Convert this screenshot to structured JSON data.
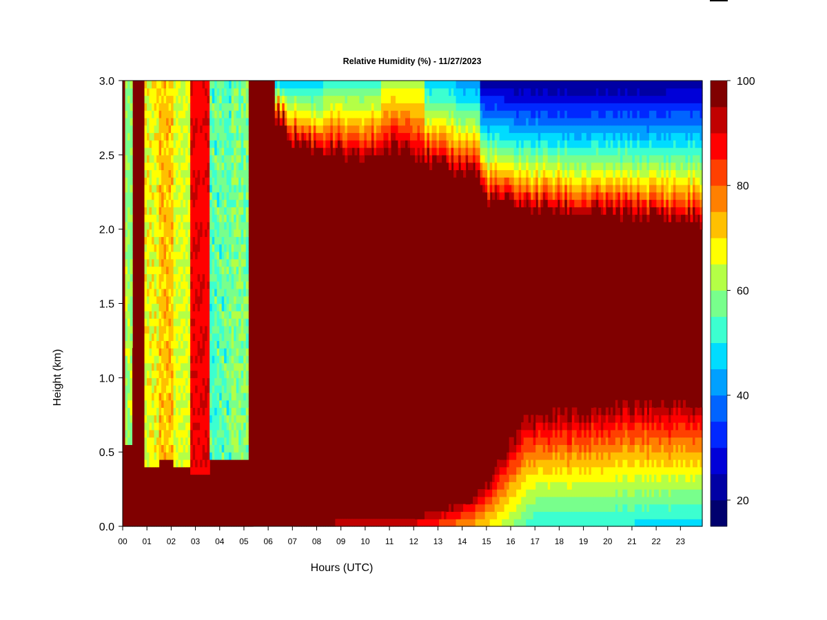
{
  "chart_data": {
    "type": "heatmap",
    "title": "Relative Humidity (%) - 11/27/2023",
    "xlabel": "Hours (UTC)",
    "ylabel": "Height (km)",
    "xlim": [
      0,
      23.9
    ],
    "ylim": [
      0,
      3
    ],
    "x_ticks": [
      "00",
      "01",
      "02",
      "03",
      "04",
      "05",
      "06",
      "07",
      "08",
      "09",
      "10",
      "11",
      "12",
      "13",
      "14",
      "15",
      "16",
      "17",
      "18",
      "19",
      "20",
      "21",
      "22",
      "23"
    ],
    "y_ticks": [
      "0.0",
      "0.5",
      "1.0",
      "1.5",
      "2.0",
      "2.5",
      "3.0"
    ],
    "colorbar": {
      "min": 15,
      "max": 100,
      "ticks": [
        "20",
        "40",
        "60",
        "80",
        "100"
      ],
      "colors": [
        "#00006e",
        "#0000a4",
        "#0000d8",
        "#0028ff",
        "#0064ff",
        "#00a0ff",
        "#00dcff",
        "#3cffd0",
        "#78ff8c",
        "#b4ff46",
        "#ffff00",
        "#ffc000",
        "#ff8000",
        "#ff4000",
        "#ff0000",
        "#c00000",
        "#800000"
      ]
    },
    "profiles": [
      {
        "hour": 0.0,
        "lower_top_km": 0.35,
        "upper_base_km": 3.0
      },
      {
        "hour": 0.2,
        "lower_top_km": 0.55,
        "upper_base_km": 3.0,
        "min_rh": 55
      },
      {
        "hour": 0.5,
        "lower_top_km": 3.0,
        "upper_base_km": 3.0
      },
      {
        "hour": 1.3,
        "lower_top_km": 0.4,
        "upper_base_km": 3.0,
        "min_rh": 62
      },
      {
        "hour": 1.7,
        "lower_top_km": 0.45,
        "upper_base_km": 3.0,
        "min_rh": 68
      },
      {
        "hour": 2.5,
        "lower_top_km": 0.4,
        "upper_base_km": 3.0,
        "min_rh": 60
      },
      {
        "hour": 3.0,
        "lower_top_km": 0.35,
        "upper_base_km": 3.0,
        "min_rh": 88
      },
      {
        "hour": 4.2,
        "lower_top_km": 0.45,
        "upper_base_km": 3.0,
        "min_rh": 48
      },
      {
        "hour": 4.8,
        "lower_top_km": 0.45,
        "upper_base_km": 3.0,
        "min_rh": 52
      },
      {
        "hour": 5.5,
        "lower_top_km": 0.0,
        "upper_base_km": 3.0
      },
      {
        "hour": 7.0,
        "lower_top_km": 0.05,
        "upper_base_km": 2.6,
        "min_rh": 45
      },
      {
        "hour": 9.5,
        "lower_top_km": 0.07,
        "upper_base_km": 2.45,
        "min_rh": 52
      },
      {
        "hour": 11.8,
        "lower_top_km": 0.08,
        "upper_base_km": 2.55,
        "min_rh": 62
      },
      {
        "hour": 13.0,
        "lower_top_km": 0.12,
        "upper_base_km": 2.4,
        "min_rh": 45
      },
      {
        "hour": 14.5,
        "lower_top_km": 0.2,
        "upper_base_km": 2.4,
        "min_rh": 40
      },
      {
        "hour": 15.0,
        "lower_top_km": 0.3,
        "upper_base_km": 2.2,
        "min_rh": 22
      },
      {
        "hour": 16.5,
        "lower_top_km": 0.75,
        "upper_base_km": 2.15,
        "min_rh": 20
      },
      {
        "hour": 19.0,
        "lower_top_km": 0.8,
        "upper_base_km": 2.1,
        "min_rh": 20
      },
      {
        "hour": 21.0,
        "lower_top_km": 0.85,
        "upper_base_km": 2.1,
        "min_rh": 20
      },
      {
        "hour": 23.9,
        "lower_top_km": 0.85,
        "upper_base_km": 2.05,
        "min_rh": 22
      }
    ],
    "surface_min_rh": [
      {
        "hour": 0.0,
        "rh": 95
      },
      {
        "hour": 7.0,
        "rh": 95
      },
      {
        "hour": 12.0,
        "rh": 88
      },
      {
        "hour": 14.0,
        "rh": 76
      },
      {
        "hour": 15.5,
        "rh": 65
      },
      {
        "hour": 17.0,
        "rh": 50
      },
      {
        "hour": 23.9,
        "rh": 48
      }
    ]
  }
}
